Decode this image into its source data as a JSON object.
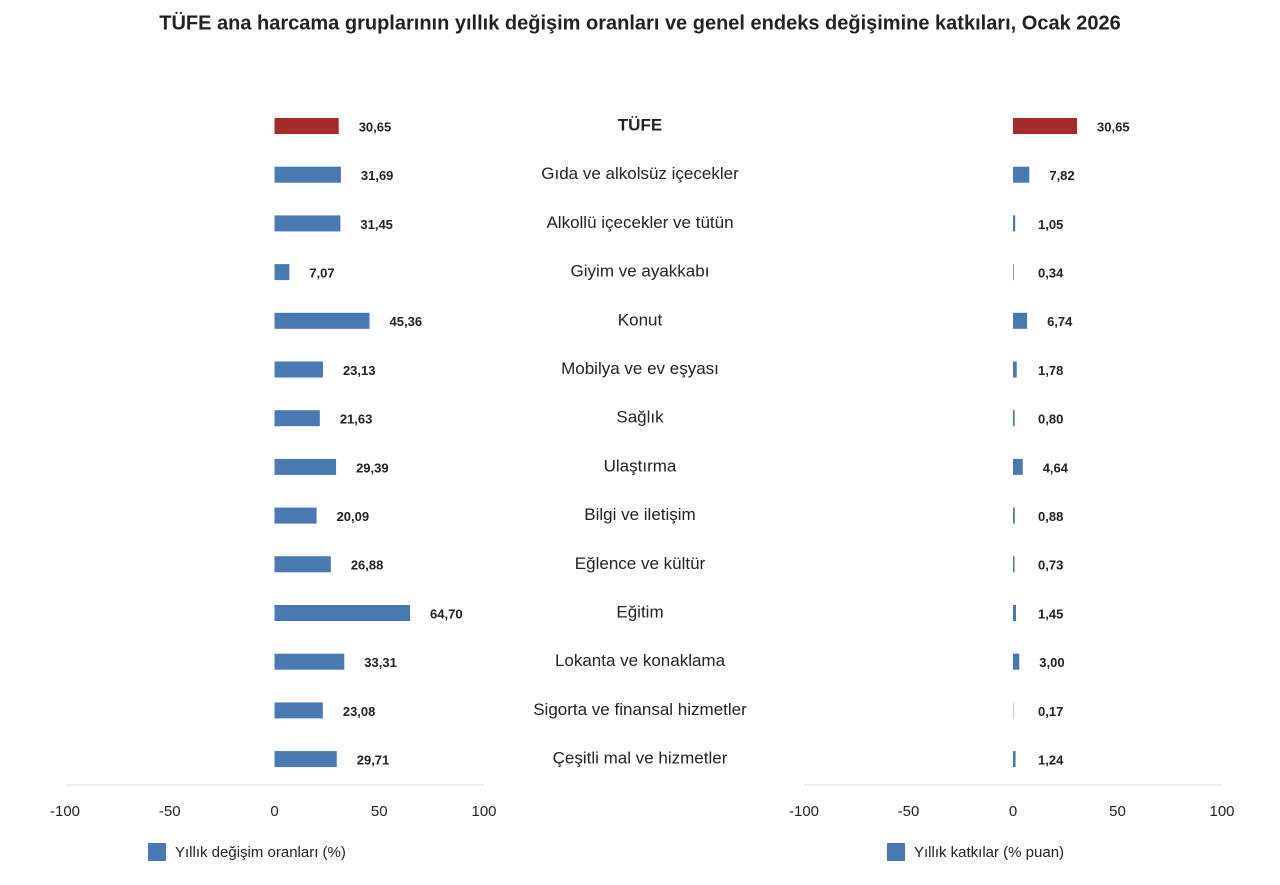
{
  "chart_data": [
    {
      "type": "bar",
      "orientation": "horizontal",
      "title": "TÜFE ana harcama gruplarının yıllık değişim oranları ve genel endeks değişimine katkıları, Ocak 2026",
      "categories": [
        "TÜFE",
        "Gıda ve alkolsüz içecekler",
        "Alkollü içecekler ve tütün",
        "Giyim ve ayakkabı",
        "Konut",
        "Mobilya ve ev eşyası",
        "Sağlık",
        "Ulaştırma",
        "Bilgi ve iletişim",
        "Eğlence ve kültür",
        "Eğitim",
        "Lokanta ve konaklama",
        "Sigorta ve finansal hizmetler",
        "Çeşitli mal ve hizmetler"
      ],
      "series": [
        {
          "name": "Yıllık değişim oranları (%)",
          "color": "#4a78b0",
          "colors": [
            "#a52a2a",
            "#4a78b0",
            "#4a78b0",
            "#4a78b0",
            "#4a78b0",
            "#4a78b0",
            "#4a78b0",
            "#4a78b0",
            "#4a78b0",
            "#4a78b0",
            "#4a78b0",
            "#4a78b0",
            "#4a78b0",
            "#4a78b0"
          ],
          "values": [
            30.65,
            31.69,
            31.45,
            7.07,
            45.36,
            23.13,
            21.63,
            29.39,
            20.09,
            26.88,
            64.7,
            33.31,
            23.08,
            29.71
          ],
          "value_labels": [
            "30,65",
            "31,69",
            "31,45",
            "7,07",
            "45,36",
            "23,13",
            "21,63",
            "29,39",
            "20,09",
            "26,88",
            "64,70",
            "33,31",
            "23,08",
            "29,71"
          ]
        }
      ],
      "xlim": [
        -100,
        100
      ],
      "xticks": [
        -100,
        -50,
        0,
        50,
        100
      ],
      "grid": false,
      "legend": "bottom-left"
    },
    {
      "type": "bar",
      "orientation": "horizontal",
      "series": [
        {
          "name": "Yıllık katkılar (% puan)",
          "color": "#4a78b0",
          "colors": [
            "#a52a2a",
            "#4a78b0",
            "#4a78b0",
            "#4a78b0",
            "#4a78b0",
            "#4a78b0",
            "#4a78b0",
            "#4a78b0",
            "#4a78b0",
            "#4a78b0",
            "#4a78b0",
            "#4a78b0",
            "#4a78b0",
            "#4a78b0"
          ],
          "values": [
            30.65,
            7.82,
            1.05,
            0.34,
            6.74,
            1.78,
            0.8,
            4.64,
            0.88,
            0.73,
            1.45,
            3.0,
            0.17,
            1.24
          ],
          "value_labels": [
            "30,65",
            "7,82",
            "1,05",
            "0,34",
            "6,74",
            "1,78",
            "0,80",
            "4,64",
            "0,88",
            "0,73",
            "1,45",
            "3,00",
            "0,17",
            "1,24"
          ]
        }
      ],
      "xlim": [
        -100,
        100
      ],
      "xticks": [
        -100,
        -50,
        0,
        50,
        100
      ],
      "grid": false,
      "legend": "bottom-left"
    }
  ]
}
